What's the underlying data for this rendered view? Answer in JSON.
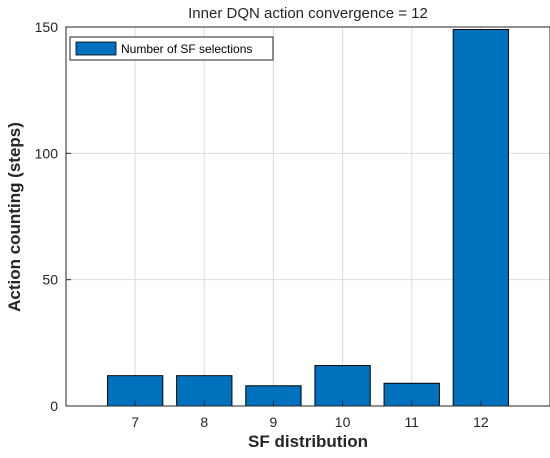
{
  "chart_data": {
    "type": "bar",
    "title": "Inner DQN action convergence = 12",
    "xlabel": "SF distribution",
    "ylabel": "Action counting (steps)",
    "categories": [
      "7",
      "8",
      "9",
      "10",
      "11",
      "12"
    ],
    "series": [
      {
        "name": "Number of SF selections",
        "values": [
          12,
          12,
          8,
          16,
          9,
          149
        ]
      }
    ],
    "xlim": [
      6,
      13
    ],
    "ylim": [
      0,
      150
    ],
    "yticks": [
      0,
      50,
      100,
      150
    ],
    "grid": true,
    "legend_position": "top-left",
    "bar_color": "#0072BD",
    "edge_color": "#000000",
    "grid_color": "#dcdcdc"
  }
}
